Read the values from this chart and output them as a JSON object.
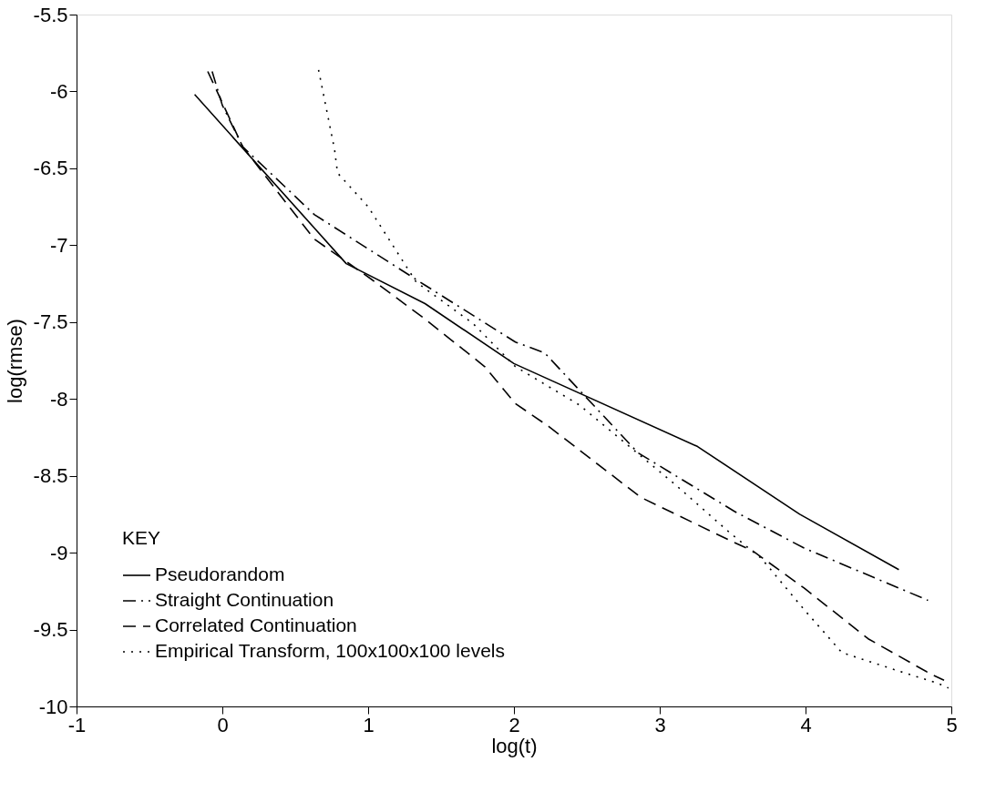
{
  "chart_data": {
    "type": "line",
    "xlabel": "log(t)",
    "ylabel": "log(rmse)",
    "legend_title": "KEY",
    "legend": "bottom left",
    "grid": false,
    "xlim": [
      -1,
      5
    ],
    "xticks": [
      -1,
      0,
      1,
      2,
      3,
      4,
      5
    ],
    "ylim": [
      -10,
      -5.5
    ],
    "yticks": [
      -10,
      -9.5,
      -9,
      -8.5,
      -8,
      -7.5,
      -7,
      -6.5,
      -6,
      -5.5
    ],
    "series": [
      {
        "name": "Pseudorandom",
        "color": "#000000",
        "line_style": "solid",
        "x": [
          -0.19,
          0.85,
          1.39,
          2.0,
          3.26,
          3.96,
          4.64
        ],
        "values": [
          -6.02,
          -7.12,
          -7.38,
          -7.77,
          -8.31,
          -8.75,
          -9.11
        ]
      },
      {
        "name": "Straight Continuation",
        "color": "#000000",
        "line_style": "dashdot",
        "x": [
          -0.07,
          0.0,
          0.14,
          0.63,
          1.39,
          2.01,
          2.21,
          2.85,
          3.51,
          3.99,
          4.84
        ],
        "values": [
          -5.87,
          -6.09,
          -6.36,
          -6.8,
          -7.26,
          -7.63,
          -7.7,
          -8.35,
          -8.73,
          -8.97,
          -9.31
        ]
      },
      {
        "name": "Correlated Continuation",
        "color": "#000000",
        "line_style": "dashed",
        "x": [
          -0.1,
          0.14,
          0.63,
          1.02,
          1.39,
          1.8,
          2.01,
          2.24,
          2.87,
          3.48,
          3.64,
          3.99,
          4.43,
          4.86,
          4.95
        ],
        "values": [
          -5.87,
          -6.36,
          -6.96,
          -7.22,
          -7.48,
          -7.79,
          -8.03,
          -8.18,
          -8.64,
          -8.92,
          -8.99,
          -9.23,
          -9.56,
          -9.79,
          -9.83
        ]
      },
      {
        "name": "Empirical Transform, 100x100x100 levels",
        "color": "#000000",
        "line_style": "dotted",
        "x": [
          0.66,
          0.77,
          0.79,
          1.0,
          1.33,
          1.72,
          2.01,
          2.45,
          3.11,
          3.48,
          3.7,
          3.99,
          4.25,
          4.64,
          4.91,
          4.98
        ],
        "values": [
          -5.86,
          -6.38,
          -6.53,
          -6.75,
          -7.24,
          -7.51,
          -7.79,
          -8.04,
          -8.56,
          -8.87,
          -9.04,
          -9.37,
          -9.65,
          -9.77,
          -9.85,
          -9.88
        ]
      }
    ]
  }
}
